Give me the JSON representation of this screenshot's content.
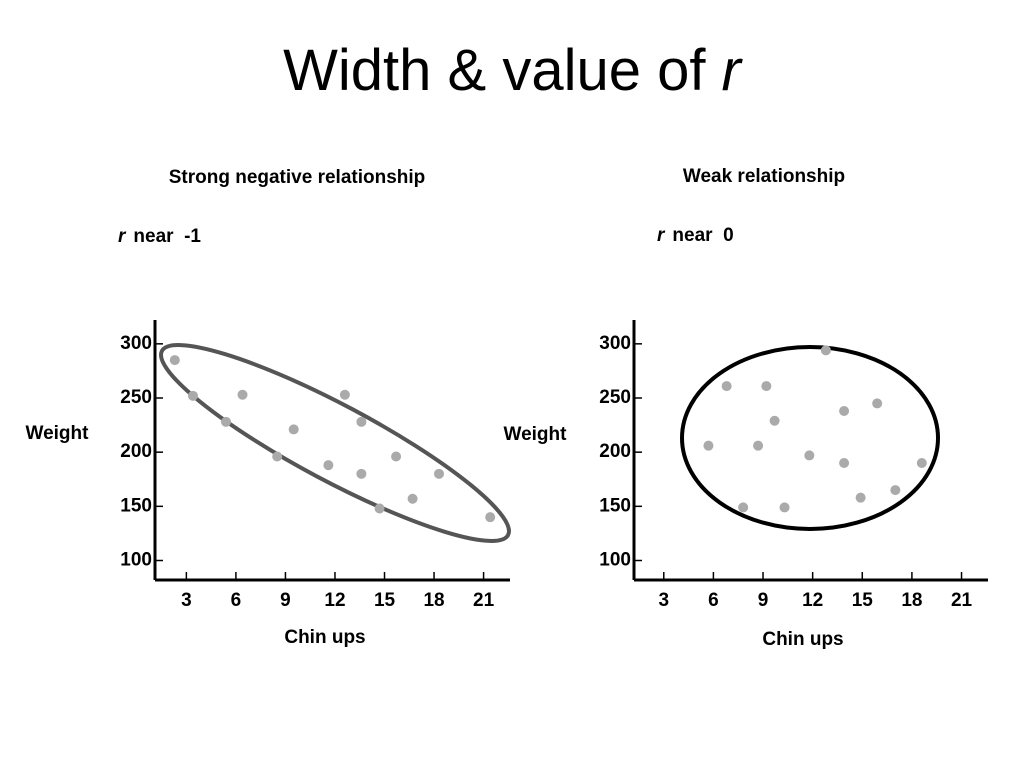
{
  "title": "Width & value of",
  "title_symbol": "r",
  "chart_data": [
    {
      "type": "scatter",
      "title": "Strong negative relationship",
      "subtitle_symbol": "r",
      "subtitle": "near  -1",
      "x_label": "Chin ups",
      "y_label": "Weight",
      "color": "#aaaaaa",
      "x": [
        2.3,
        3.4,
        5.4,
        6.4,
        8.5,
        9.5,
        11.6,
        12.6,
        13.6,
        13.6,
        15.7,
        14.7,
        16.7,
        18.3,
        21.4
      ],
      "values": [
        285,
        252,
        228,
        253,
        196,
        221,
        188,
        253,
        228,
        180,
        196,
        148,
        157,
        180,
        140
      ],
      "xlim": [
        1.1,
        22.6
      ],
      "xticks": [
        3,
        6,
        9,
        12,
        15,
        18,
        21
      ],
      "ylim": [
        82,
        322
      ],
      "yticks": [
        100,
        150,
        200,
        250,
        300
      ]
    },
    {
      "type": "scatter",
      "title": "Weak relationship",
      "subtitle_symbol": "r",
      "subtitle": "near  0",
      "x_label": "Chin ups",
      "y_label": "Weight",
      "color": "#aaaaaa",
      "x": [
        6.8,
        9.2,
        12.8,
        5.7,
        8.7,
        9.7,
        11.8,
        13.9,
        15.9,
        13.9,
        14.9,
        17.0,
        18.6,
        7.8,
        10.3
      ],
      "values": [
        261,
        261,
        294,
        206,
        206,
        229,
        197,
        238,
        245,
        190,
        158,
        165,
        190,
        149,
        149
      ],
      "xlim": [
        1.2,
        22.6
      ],
      "xticks": [
        3,
        6,
        9,
        12,
        15,
        18,
        21
      ],
      "ylim": [
        82,
        322
      ],
      "yticks": [
        100,
        150,
        200,
        250,
        300
      ]
    }
  ]
}
